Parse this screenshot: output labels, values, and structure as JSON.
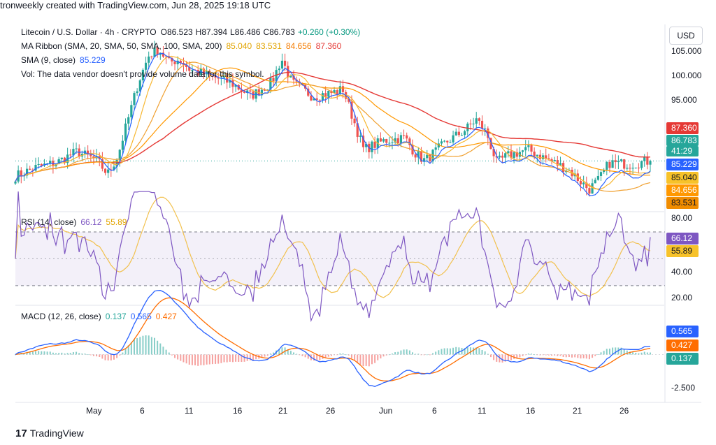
{
  "caption": "tronweekly created with TradingView.com, Jun 28, 2025 19:18 UTC",
  "currency_button": "USD",
  "price_legend": {
    "symbol": "Litecoin / U.S. Dollar · 4h · CRYPTO",
    "open": "O86.523",
    "high": "H87.394",
    "low": "L86.486",
    "close": "C86.783",
    "change": "+0.260 (+0.30%)"
  },
  "ma_legend": {
    "label": "MA Ribbon (SMA, 20, SMA, 50, SMA, 100, SMA, 200)",
    "v20": "85.040",
    "v50": "83.531",
    "v100": "84.656",
    "v200": "87.360"
  },
  "sma_legend": {
    "label": "SMA (9, close)",
    "value": "85.229"
  },
  "vol_legend": "Vol: The data vendor doesn't provide volume data for this symbol.",
  "rsi_legend": {
    "label": "RSI (14, close)",
    "rsi": "66.12",
    "ma": "55.89"
  },
  "macd_legend": {
    "label": "MACD (12, 26, close)",
    "hist": "0.137",
    "macd": "0.565",
    "signal": "0.427"
  },
  "price_axis": [
    "105.000",
    "100.000",
    "95.000"
  ],
  "rsi_axis": [
    "80.00",
    "40.00",
    "20.00"
  ],
  "macd_axis": [
    "-2.500"
  ],
  "tags": {
    "sma200": "87.360",
    "last": "86.783",
    "countdown": "41:29",
    "sma9": "85.229",
    "sma20": "85.040",
    "sma100": "84.656",
    "sma50": "83.531",
    "rsi": "66.12",
    "rsi_ma": "55.89",
    "macd": "0.565",
    "signal": "0.427",
    "hist": "0.137"
  },
  "x_labels": [
    "May",
    "6",
    "11",
    "16",
    "21",
    "26",
    "Jun",
    "6",
    "11",
    "16",
    "21",
    "26"
  ],
  "footer": "TradingView",
  "colors": {
    "up": "#26a69a",
    "down": "#ef5350",
    "sma9": "#2962ff",
    "sma20": "#f7b731",
    "sma50": "#f0a030",
    "sma100": "#ff9800",
    "sma200": "#e53935",
    "rsi": "#7e57c2",
    "rsi_ma": "#f2c14e",
    "macd": "#2962ff",
    "signal": "#ff6d00"
  },
  "chart_data": {
    "type": "candlestick",
    "timeframe": "4h",
    "x_range": [
      "2025-04-27",
      "2025-06-28"
    ],
    "price_ylim": [
      79.5,
      107.2
    ],
    "close_path": [
      {
        "date": "2025-04-27",
        "close": 84.5
      },
      {
        "date": "2025-04-29",
        "close": 85.8
      },
      {
        "date": "2025-05-01",
        "close": 86.5
      },
      {
        "date": "2025-05-03",
        "close": 88.2
      },
      {
        "date": "2025-05-05",
        "close": 86.8
      },
      {
        "date": "2025-05-06",
        "close": 84.8
      },
      {
        "date": "2025-05-07",
        "close": 87.5
      },
      {
        "date": "2025-05-08",
        "close": 93.0
      },
      {
        "date": "2025-05-09",
        "close": 98.5
      },
      {
        "date": "2025-05-10",
        "close": 102.5
      },
      {
        "date": "2025-05-11",
        "close": 103.5
      },
      {
        "date": "2025-05-12",
        "close": 101.5
      },
      {
        "date": "2025-05-13",
        "close": 102.0
      },
      {
        "date": "2025-05-14",
        "close": 100.5
      },
      {
        "date": "2025-05-16",
        "close": 99.5
      },
      {
        "date": "2025-05-18",
        "close": 98.5
      },
      {
        "date": "2025-05-20",
        "close": 96.5
      },
      {
        "date": "2025-05-22",
        "close": 98.5
      },
      {
        "date": "2025-05-23",
        "close": 102.0
      },
      {
        "date": "2025-05-24",
        "close": 98.5
      },
      {
        "date": "2025-05-26",
        "close": 96.5
      },
      {
        "date": "2025-05-28",
        "close": 97.0
      },
      {
        "date": "2025-05-29",
        "close": 97.5
      },
      {
        "date": "2025-05-30",
        "close": 93.0
      },
      {
        "date": "2025-05-31",
        "close": 88.5
      },
      {
        "date": "2025-06-02",
        "close": 89.8
      },
      {
        "date": "2025-06-04",
        "close": 90.3
      },
      {
        "date": "2025-06-05",
        "close": 88.0
      },
      {
        "date": "2025-06-06",
        "close": 86.8
      },
      {
        "date": "2025-06-08",
        "close": 89.5
      },
      {
        "date": "2025-06-10",
        "close": 91.5
      },
      {
        "date": "2025-06-11",
        "close": 93.0
      },
      {
        "date": "2025-06-12",
        "close": 91.0
      },
      {
        "date": "2025-06-13",
        "close": 86.5
      },
      {
        "date": "2025-06-14",
        "close": 87.5
      },
      {
        "date": "2025-06-16",
        "close": 88.5
      },
      {
        "date": "2025-06-18",
        "close": 87.0
      },
      {
        "date": "2025-06-20",
        "close": 85.5
      },
      {
        "date": "2025-06-22",
        "close": 82.5
      },
      {
        "date": "2025-06-23",
        "close": 84.0
      },
      {
        "date": "2025-06-24",
        "close": 86.5
      },
      {
        "date": "2025-06-26",
        "close": 86.3
      },
      {
        "date": "2025-06-28",
        "close": 86.783
      }
    ],
    "sma_levels_last": {
      "sma9": 85.229,
      "sma20": 85.04,
      "sma50": 83.531,
      "sma100": 84.656,
      "sma200": 87.36
    },
    "rsi": {
      "ylim": [
        18,
        84
      ],
      "bands": [
        30,
        70
      ],
      "last": 66.12,
      "ma_last": 55.89
    },
    "macd": {
      "ylim": [
        -3.2,
        3.2
      ],
      "last_macd": 0.565,
      "last_signal": 0.427,
      "last_hist": 0.137
    }
  }
}
